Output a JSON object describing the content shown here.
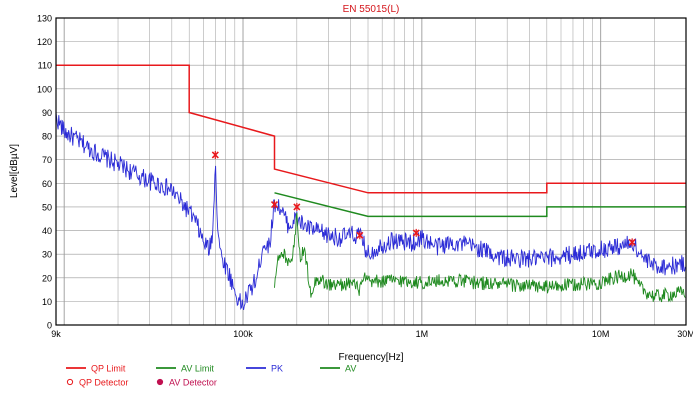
{
  "chart_data": {
    "type": "line",
    "title": "EN 55015(L)",
    "xlabel": "Frequency[Hz]",
    "ylabel": "Level[dBµV]",
    "x_scale": "log",
    "xlim": [
      9000,
      30000000
    ],
    "ylim": [
      0,
      130
    ],
    "y_ticks": [
      0,
      10,
      20,
      30,
      40,
      50,
      60,
      70,
      80,
      90,
      100,
      110,
      120,
      130
    ],
    "x_ticks": [
      {
        "value": 9000,
        "label": "9k"
      },
      {
        "value": 100000,
        "label": "100k"
      },
      {
        "value": 1000000,
        "label": "1M"
      },
      {
        "value": 10000000,
        "label": "10M"
      },
      {
        "value": 30000000,
        "label": "30M"
      }
    ],
    "grid": true,
    "legend_position": "bottom-left",
    "colors": {
      "qp_limit": "#e8191c",
      "av_limit": "#1f8a1f",
      "pk": "#2b2bd6",
      "av": "#1f8a1f",
      "qp_detector": "#e8191c",
      "av_detector": "#c01050",
      "title": "#d4141a",
      "axis": "#000000",
      "grid": "#9a9a9a"
    },
    "series": [
      {
        "name": "QP Limit",
        "style": "line",
        "x": [
          9000,
          50000,
          50000,
          150000,
          150000,
          500000,
          500000,
          5000000,
          5000000,
          30000000
        ],
        "y": [
          110,
          110,
          90,
          80,
          66,
          56,
          56,
          56,
          60,
          60
        ]
      },
      {
        "name": "AV Limit",
        "style": "line",
        "x": [
          150000,
          500000,
          500000,
          5000000,
          5000000,
          30000000
        ],
        "y": [
          56,
          46,
          46,
          46,
          50,
          50
        ]
      },
      {
        "name": "PK",
        "style": "noisy-line",
        "x": [
          9000,
          10000,
          12000,
          15000,
          20000,
          25000,
          30000,
          35000,
          40000,
          45000,
          50000,
          55000,
          60000,
          65000,
          68000,
          70000,
          72000,
          75000,
          80000,
          85000,
          90000,
          95000,
          100000,
          105000,
          110000,
          120000,
          130000,
          140000,
          150000,
          160000,
          180000,
          200000,
          220000,
          250000,
          300000,
          350000,
          400000,
          450000,
          500000,
          600000,
          700000,
          800000,
          900000,
          1000000,
          1200000,
          1500000,
          2000000,
          2500000,
          3000000,
          4000000,
          5000000,
          7000000,
          10000000,
          12000000,
          14000000,
          15000000,
          16000000,
          18000000,
          20000000,
          25000000,
          30000000
        ],
        "y": [
          88,
          82,
          78,
          73,
          68,
          64,
          61,
          59,
          57,
          52,
          48,
          43,
          35,
          32,
          40,
          72,
          42,
          30,
          25,
          20,
          14,
          10,
          8,
          12,
          15,
          20,
          35,
          33,
          52,
          50,
          42,
          45,
          42,
          40,
          38,
          37,
          38,
          38,
          30,
          34,
          36,
          35,
          35,
          37,
          33,
          35,
          33,
          30,
          28,
          28,
          28,
          30,
          32,
          33,
          34,
          35,
          32,
          27,
          25,
          25,
          26
        ]
      },
      {
        "name": "AV",
        "style": "noisy-line",
        "x": [
          150000,
          155000,
          160000,
          170000,
          180000,
          190000,
          200000,
          210000,
          220000,
          240000,
          260000,
          300000,
          350000,
          400000,
          450000,
          480000,
          500000,
          700000,
          1000000,
          1500000,
          2000000,
          3000000,
          5000000,
          7000000,
          10000000,
          12000000,
          14000000,
          15000000,
          16000000,
          18000000,
          20000000,
          25000000,
          30000000
        ],
        "y": [
          18,
          27,
          28,
          30,
          27,
          30,
          46,
          28,
          32,
          14,
          20,
          17,
          17,
          18,
          15,
          20,
          18,
          19,
          18,
          19,
          18,
          17,
          16,
          17,
          18,
          20,
          21,
          22,
          17,
          14,
          12,
          13,
          14
        ]
      }
    ],
    "markers": [
      {
        "name": "QP Detector",
        "symbol": "circle",
        "points": []
      },
      {
        "name": "AV Detector",
        "symbol": "filled-circle",
        "points": []
      }
    ],
    "peak_markers": {
      "x": [
        70000,
        150000,
        200000,
        450000,
        930000,
        15000000
      ],
      "y": [
        72,
        51,
        50,
        38,
        39,
        35
      ]
    },
    "legend": [
      {
        "label": "QP Limit",
        "kind": "line",
        "color_key": "qp_limit"
      },
      {
        "label": "AV Limit",
        "kind": "line",
        "color_key": "av_limit"
      },
      {
        "label": "PK",
        "kind": "line",
        "color_key": "pk"
      },
      {
        "label": "AV",
        "kind": "line",
        "color_key": "av"
      },
      {
        "label": "QP Detector",
        "kind": "open-circle",
        "color_key": "qp_detector"
      },
      {
        "label": "AV Detector",
        "kind": "filled-circle",
        "color_key": "av_detector"
      }
    ]
  }
}
